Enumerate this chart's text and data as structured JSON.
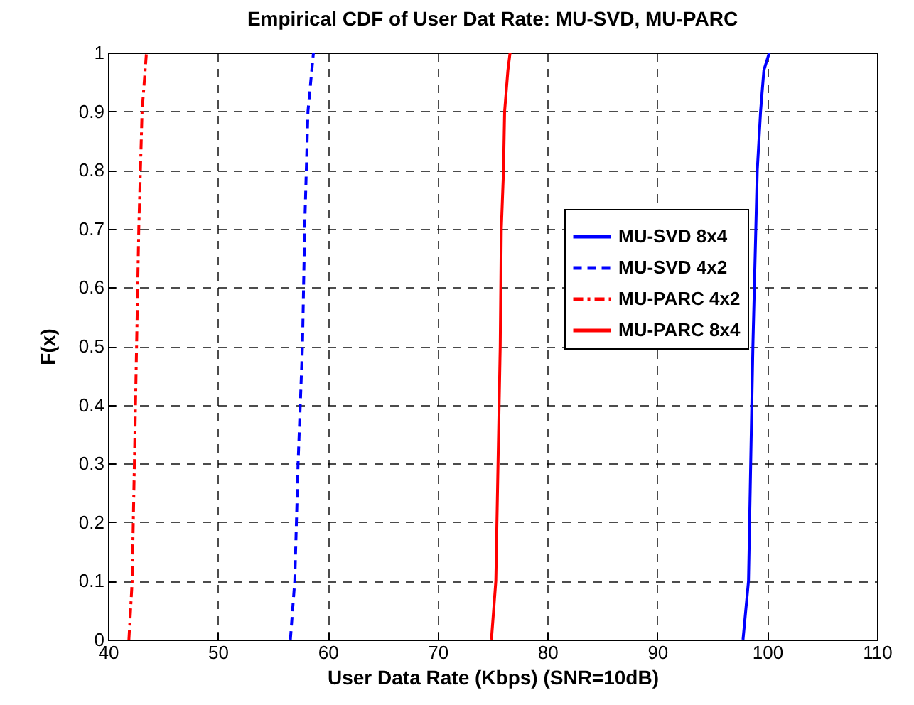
{
  "chart_data": {
    "type": "line",
    "title": "Empirical CDF of User Dat  Rate: MU-SVD, MU-PARC",
    "xlabel": "User Data Rate (Kbps) (SNR=10dB)",
    "ylabel": "F(x)",
    "xlim": [
      40,
      110
    ],
    "xticks": [
      40,
      50,
      60,
      70,
      80,
      90,
      100,
      110
    ],
    "ylim": [
      0,
      1
    ],
    "yticks": [
      0,
      0.1,
      0.2,
      0.3,
      0.4,
      0.5,
      0.6,
      0.7,
      0.8,
      0.9,
      1
    ],
    "grid": true,
    "legend": "right",
    "series": [
      {
        "name": "MU-SVD 8x4",
        "color": "#0000ff",
        "line_style": "solid",
        "x": [
          97.8,
          98.3,
          98.5,
          98.7,
          99.1,
          99.4,
          99.7,
          100.2
        ],
        "values": [
          0,
          0.1,
          0.3,
          0.5,
          0.8,
          0.9,
          0.97,
          1
        ]
      },
      {
        "name": "MU-SVD 4x2",
        "color": "#0000ff",
        "line_style": "dashed",
        "x": [
          56.6,
          57.0,
          57.3,
          57.7,
          57.9,
          58.2,
          58.7
        ],
        "values": [
          0,
          0.1,
          0.3,
          0.5,
          0.7,
          0.9,
          1
        ]
      },
      {
        "name": "MU-PARC 4x2",
        "color": "#ff0000",
        "line_style": "dashdot",
        "x": [
          41.9,
          42.2,
          42.6,
          42.8,
          43.1,
          43.5
        ],
        "values": [
          0,
          0.1,
          0.5,
          0.7,
          0.9,
          1
        ]
      },
      {
        "name": "MU-PARC 8x4",
        "color": "#ff0000",
        "line_style": "solid",
        "x": [
          74.9,
          75.3,
          75.5,
          75.7,
          75.8,
          76.0,
          76.1,
          76.4,
          76.6
        ],
        "values": [
          0,
          0.1,
          0.3,
          0.5,
          0.7,
          0.8,
          0.9,
          0.97,
          1
        ]
      }
    ]
  }
}
